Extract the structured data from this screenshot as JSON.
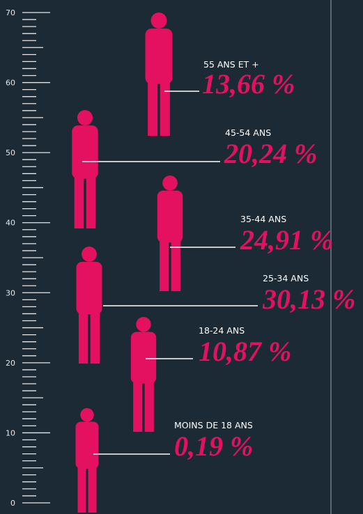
{
  "ruler": {
    "labels": [
      0,
      10,
      20,
      30,
      40,
      50,
      60,
      70
    ]
  },
  "groups": [
    {
      "label": "55 ANS ET +",
      "value": "13,66 %"
    },
    {
      "label": "45-54 ANS",
      "value": "20,24 %"
    },
    {
      "label": "35-44 ANS",
      "value": "24,91 %"
    },
    {
      "label": "25-34 ANS",
      "value": "30,13 %"
    },
    {
      "label": "18-24 ANS",
      "value": "10,87 %"
    },
    {
      "label": "MOINS DE 18 ANS",
      "value": "0,19 %"
    }
  ]
}
